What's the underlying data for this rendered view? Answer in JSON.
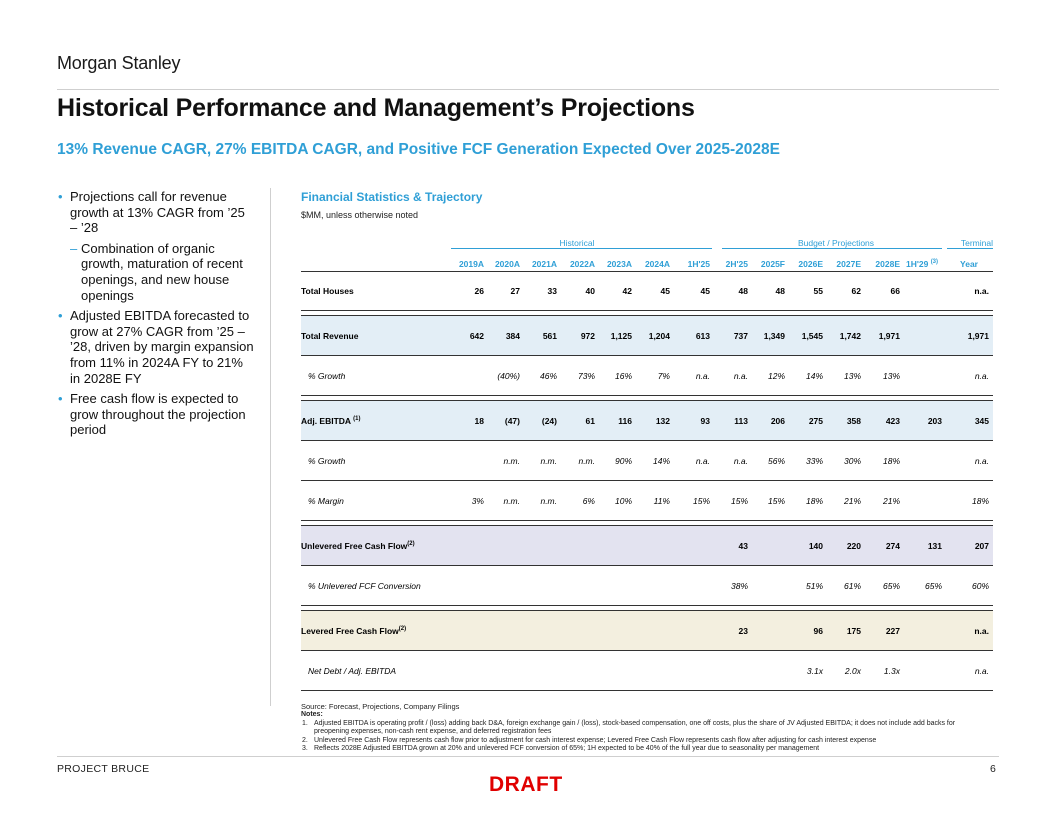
{
  "brand": "Morgan Stanley",
  "title": "Historical Performance and Management’s Projections",
  "subtitle": "13% Revenue CAGR, 27% EBITDA CAGR, and Positive FCF Generation Expected Over 2025-2028E",
  "left_bullets": {
    "b1": "Projections call for revenue growth at 13% CAGR from ’25 – ’28",
    "b1_sub": "Combination of organic growth, maturation of recent openings, and new house openings",
    "b2": "Adjusted EBITDA forecasted to grow at 27% CAGR from ’25 – ’28, driven by margin expansion from 11% in 2024A FY to 21% in 2028E FY",
    "b3": "Free cash flow is expected to grow throughout the projection period"
  },
  "table": {
    "title": "Financial Statistics & Trajectory",
    "units": "$MM, unless otherwise noted",
    "groups": {
      "historical": "Historical",
      "projections": "Budget / Projections",
      "terminal": "Terminal"
    },
    "columns": [
      "2019A",
      "2020A",
      "2021A",
      "2022A",
      "2023A",
      "2024A",
      "1H'25",
      "2H'25",
      "2025F",
      "2026E",
      "2027E",
      "2028E",
      "1H'29",
      "Year"
    ],
    "col_1h29_note": "(3)",
    "rows": {
      "total_houses": {
        "label": "Total Houses",
        "values": [
          "26",
          "27",
          "33",
          "40",
          "42",
          "45",
          "45",
          "48",
          "48",
          "55",
          "62",
          "66",
          "",
          "n.a."
        ]
      },
      "total_revenue": {
        "label": "Total Revenue",
        "values": [
          "642",
          "384",
          "561",
          "972",
          "1,125",
          "1,204",
          "613",
          "737",
          "1,349",
          "1,545",
          "1,742",
          "1,971",
          "",
          "1,971"
        ]
      },
      "rev_growth": {
        "label": "% Growth",
        "values": [
          "",
          "(40%)",
          "46%",
          "73%",
          "16%",
          "7%",
          "n.a.",
          "n.a.",
          "12%",
          "14%",
          "13%",
          "13%",
          "",
          "n.a."
        ]
      },
      "adj_ebitda": {
        "label": "Adj. EBITDA",
        "note": "(1)",
        "values": [
          "18",
          "(47)",
          "(24)",
          "61",
          "116",
          "132",
          "93",
          "113",
          "206",
          "275",
          "358",
          "423",
          "203",
          "345"
        ]
      },
      "ebitda_growth": {
        "label": "% Growth",
        "values": [
          "",
          "n.m.",
          "n.m.",
          "n.m.",
          "90%",
          "14%",
          "n.a.",
          "n.a.",
          "56%",
          "33%",
          "30%",
          "18%",
          "",
          "n.a."
        ]
      },
      "ebitda_margin": {
        "label": "% Margin",
        "values": [
          "3%",
          "n.m.",
          "n.m.",
          "6%",
          "10%",
          "11%",
          "15%",
          "15%",
          "15%",
          "18%",
          "21%",
          "21%",
          "",
          "18%"
        ]
      },
      "ufcf": {
        "label": "Unlevered Free Cash Flow",
        "note": "(2)",
        "values": [
          "",
          "",
          "",
          "",
          "",
          "",
          "",
          "43",
          "",
          "140",
          "220",
          "274",
          "131",
          "207"
        ]
      },
      "ufcf_conv": {
        "label": "% Unlevered FCF Conversion",
        "values": [
          "",
          "",
          "",
          "",
          "",
          "",
          "",
          "38%",
          "",
          "51%",
          "61%",
          "65%",
          "65%",
          "60%"
        ]
      },
      "lfcf": {
        "label": "Levered Free Cash Flow",
        "note": "(2)",
        "values": [
          "",
          "",
          "",
          "",
          "",
          "",
          "",
          "23",
          "",
          "96",
          "175",
          "227",
          "",
          "n.a."
        ]
      },
      "net_debt": {
        "label": "Net Debt / Adj. EBITDA",
        "values": [
          "",
          "",
          "",
          "",
          "",
          "",
          "",
          "",
          "",
          "3.1x",
          "2.0x",
          "1.3x",
          "",
          "n.a."
        ]
      }
    }
  },
  "source": "Source: Forecast, Projections, Company Filings",
  "notes": {
    "header": "Notes:",
    "n1_num": "1.",
    "n1": "Adjusted EBITDA is operating profit / (loss) adding back D&A, foreign exchange gain / (loss), stock-based compensation, one off costs, plus the share of JV Adjusted EBITDA; it does not include add backs for preopening expenses, non-cash rent expense, and deferred registration fees",
    "n2_num": "2.",
    "n2": "Unlevered Free Cash Flow represents cash flow prior to adjustment for cash interest expense; Levered Free Cash Flow represents cash flow after adjusting for cash interest expense",
    "n3_num": "3.",
    "n3": "Reflects 2028E Adjusted EBITDA grown at 20% and unlevered FCF conversion of 65%; 1H expected to be 40% of the full year due to seasonality per management"
  },
  "footer": {
    "project": "PROJECT BRUCE",
    "page": "6",
    "draft": "DRAFT"
  },
  "colors": {
    "accent": "#2f9fd6",
    "draft": "#e00000",
    "band_blue": "#e3eef6",
    "band_lavender": "#e3e3f0",
    "band_tan": "#f3efdf"
  }
}
